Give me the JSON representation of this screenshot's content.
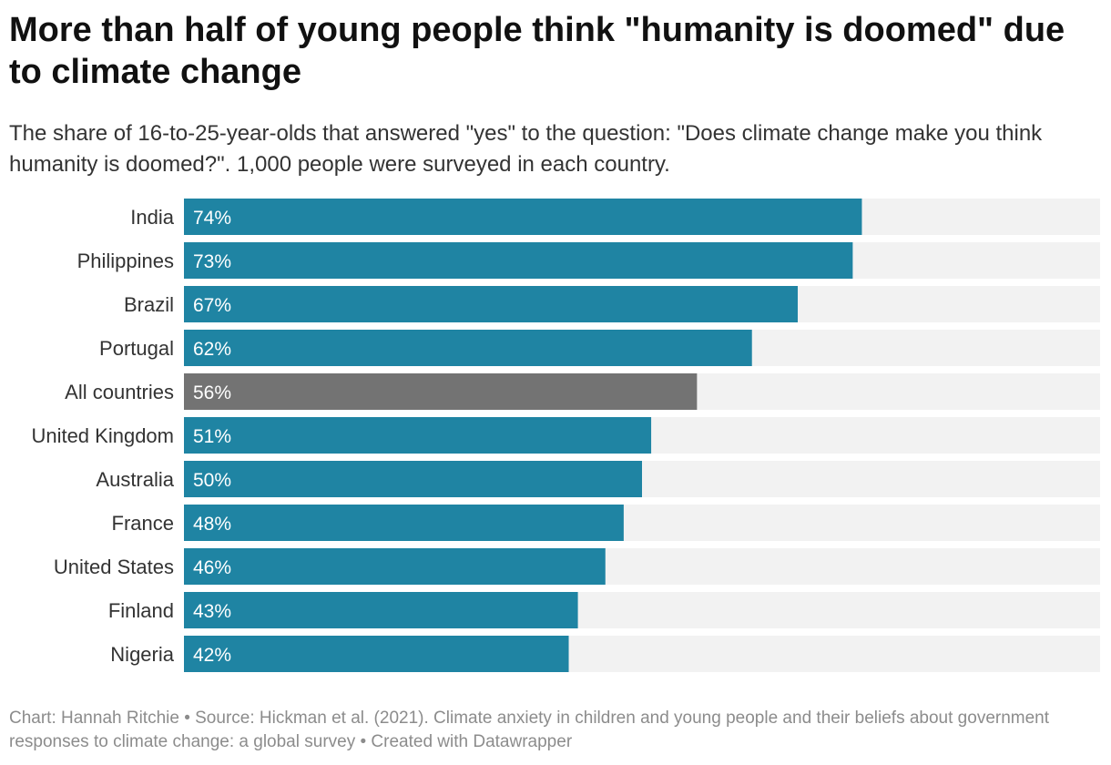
{
  "title": "More than half of young people think \"humanity is doomed\" due to climate change",
  "subtitle": "The share of 16-to-25-year-olds that answered \"yes\" to the question: \"Does climate change make you think humanity is doomed?\". 1,000 people were surveyed in each country.",
  "footer": "Chart: Hannah Ritchie • Source: Hickman et al. (2021). Climate anxiety in children and young people and their beliefs about government responses to climate change: a global survey • Created with Datawrapper",
  "colors": {
    "bar": "#1f84a3",
    "highlight_bar": "#737373",
    "track": "#f2f2f2"
  },
  "chart_data": {
    "type": "bar",
    "orientation": "horizontal",
    "categories": [
      "India",
      "Philippines",
      "Brazil",
      "Portugal",
      "All countries",
      "United Kingdom",
      "Australia",
      "France",
      "United States",
      "Finland",
      "Nigeria"
    ],
    "values": [
      74,
      73,
      67,
      62,
      56,
      51,
      50,
      48,
      46,
      43,
      42
    ],
    "value_labels": [
      "74%",
      "73%",
      "67%",
      "62%",
      "56%",
      "51%",
      "50%",
      "48%",
      "46%",
      "43%",
      "42%"
    ],
    "highlight_category": "All countries",
    "xlim": [
      0,
      100
    ],
    "unit": "%",
    "grid": false,
    "legend": "none"
  }
}
